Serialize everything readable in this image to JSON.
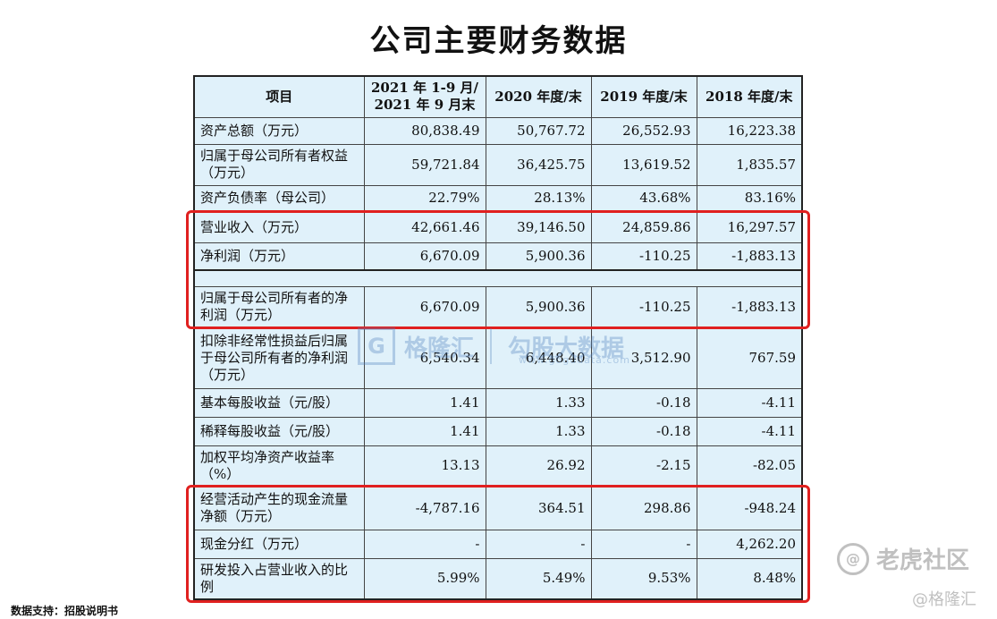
{
  "title": "公司主要财务数据",
  "table": {
    "headers": [
      "项目",
      "2021 年 1-9 月/\n2021 年 9 月末",
      "2020 年度/末",
      "2019 年度/末",
      "2018 年度/末"
    ],
    "header_col2_line1": "2021 年 1-9 月/",
    "header_col2_line2": "2021 年 9 月末",
    "rows": [
      {
        "label": "资产总额（万元）",
        "values": [
          "80,838.49",
          "50,767.72",
          "26,552.93",
          "16,223.38"
        ]
      },
      {
        "label": "归属于母公司所有者权益（万元）",
        "values": [
          "59,721.84",
          "36,425.75",
          "13,619.52",
          "1,835.57"
        ]
      },
      {
        "label": "资产负债率（母公司）",
        "values": [
          "22.79%",
          "28.13%",
          "43.68%",
          "83.16%"
        ]
      },
      {
        "label": "营业收入（万元）",
        "values": [
          "42,661.46",
          "39,146.50",
          "24,859.86",
          "16,297.57"
        ]
      },
      {
        "label": "净利润（万元）",
        "values": [
          "6,670.09",
          "5,900.36",
          "-110.25",
          "-1,883.13"
        ]
      },
      {
        "label": "归属于母公司所有者的净利润（万元）",
        "values": [
          "6,670.09",
          "5,900.36",
          "-110.25",
          "-1,883.13"
        ]
      },
      {
        "label": "扣除非经常性损益后归属于母公司所有者的净利润（万元）",
        "values": [
          "6,540.34",
          "6,448.40",
          "3,512.90",
          "767.59"
        ]
      },
      {
        "label": "基本每股收益（元/股）",
        "values": [
          "1.41",
          "1.33",
          "-0.18",
          "-4.11"
        ]
      },
      {
        "label": "稀释每股收益（元/股）",
        "values": [
          "1.41",
          "1.33",
          "-0.18",
          "-4.11"
        ]
      },
      {
        "label": "加权平均净资产收益率（%）",
        "values": [
          "13.13",
          "26.92",
          "-2.15",
          "-82.05"
        ]
      },
      {
        "label": "经营活动产生的现金流量净额（万元）",
        "values": [
          "-4,787.16",
          "364.51",
          "298.86",
          "-948.24"
        ]
      },
      {
        "label": "现金分红（万元）",
        "values": [
          "-",
          "-",
          "-",
          "4,262.20"
        ]
      },
      {
        "label": "研发投入占营业收入的比例",
        "values": [
          "5.99%",
          "5.49%",
          "9.53%",
          "8.48%"
        ]
      }
    ]
  },
  "watermark": {
    "logo_glyph": "G",
    "brand": "格隆汇",
    "product": "勾股大数据",
    "url": "www.gogudata.com"
  },
  "source": "数据支持：招股说明书",
  "tiger": {
    "icon": "@",
    "text": "老虎社区"
  },
  "corner_mark": "@格隆汇",
  "colors": {
    "table_bg": "#e0f1fa",
    "highlight": "#e0201f"
  }
}
